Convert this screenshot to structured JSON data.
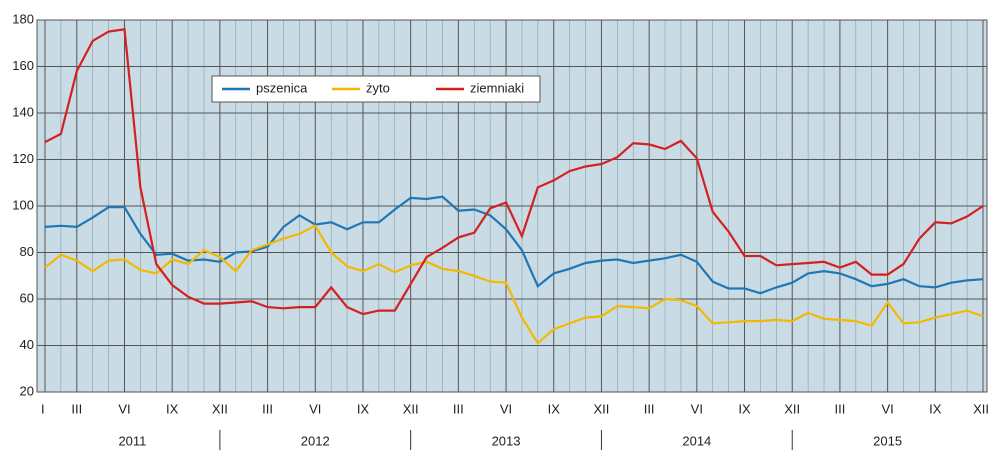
{
  "chart_data": {
    "type": "line",
    "categories": [
      "I",
      null,
      "III",
      null,
      null,
      "VI",
      null,
      null,
      "IX",
      null,
      null,
      "XII",
      null,
      null,
      "III",
      null,
      null,
      "VI",
      null,
      null,
      "IX",
      null,
      null,
      "XII",
      null,
      null,
      "III",
      null,
      null,
      "VI",
      null,
      null,
      "IX",
      null,
      null,
      "XII",
      null,
      null,
      "III",
      null,
      null,
      "VI",
      null,
      null,
      "IX",
      null,
      null,
      "XII",
      null,
      null,
      "III",
      null,
      null,
      "VI",
      null,
      null,
      "IX",
      null,
      null,
      "XII"
    ],
    "years": [
      "2011",
      "2012",
      "2013",
      "2014",
      "2015"
    ],
    "series": [
      {
        "name": "pszenica",
        "color": "#1f78b4",
        "values": [
          91,
          91.5,
          91,
          95,
          99.5,
          99.5,
          88,
          79,
          79.5,
          76.5,
          77,
          76,
          80,
          80.5,
          82.5,
          91,
          96,
          92,
          93,
          90,
          93,
          93,
          98.5,
          103.5,
          103,
          104,
          98,
          98.5,
          96,
          90,
          81,
          65.5,
          71,
          73,
          75.5,
          76.5,
          77,
          75.5,
          76.5,
          77.5,
          79,
          76,
          67.5,
          64.5,
          64.5,
          62.5,
          65,
          67,
          71,
          72,
          71,
          68.5,
          65.5,
          66.5,
          68.5,
          65.5,
          65,
          67,
          68,
          68.5
        ]
      },
      {
        "name": "żyto",
        "color": "#f5b800",
        "values": [
          73.5,
          79,
          76.5,
          72,
          76.5,
          77,
          72.5,
          71,
          77,
          75,
          81,
          78,
          72,
          81,
          83.5,
          86,
          88,
          91.5,
          80,
          74,
          72,
          75,
          71.5,
          74.5,
          76,
          73,
          72,
          70,
          67.5,
          67,
          52,
          41,
          47,
          49.5,
          52,
          52.5,
          57,
          56.5,
          56,
          60,
          59.5,
          57,
          49.5,
          50,
          50.5,
          50.5,
          51,
          50.5,
          54,
          51.5,
          51,
          50.5,
          48.5,
          58.5,
          49.5,
          50,
          52,
          53.5,
          55,
          52.5
        ]
      },
      {
        "name": "ziemniaki",
        "color": "#d42020",
        "values": [
          127.5,
          131,
          158,
          171,
          175,
          176,
          108,
          75,
          66,
          61,
          58,
          58,
          58.5,
          59,
          56.5,
          56,
          56.5,
          56.5,
          65,
          56.5,
          53.5,
          55,
          55,
          66.5,
          78,
          82,
          86.5,
          88.5,
          99,
          101.5,
          87,
          108,
          111,
          115,
          117,
          118,
          121,
          127,
          126.5,
          124.5,
          128,
          120.5,
          97.5,
          89,
          78.5,
          78.5,
          74.5,
          75,
          75.5,
          76,
          73.5,
          76,
          70.5,
          70.5,
          75,
          86,
          93,
          92.5,
          95.5,
          100
        ]
      }
    ],
    "ylim": [
      20,
      180
    ],
    "yticks": [
      20,
      40,
      60,
      80,
      100,
      120,
      140,
      160,
      180
    ],
    "grid": true,
    "legend": "top-left"
  }
}
